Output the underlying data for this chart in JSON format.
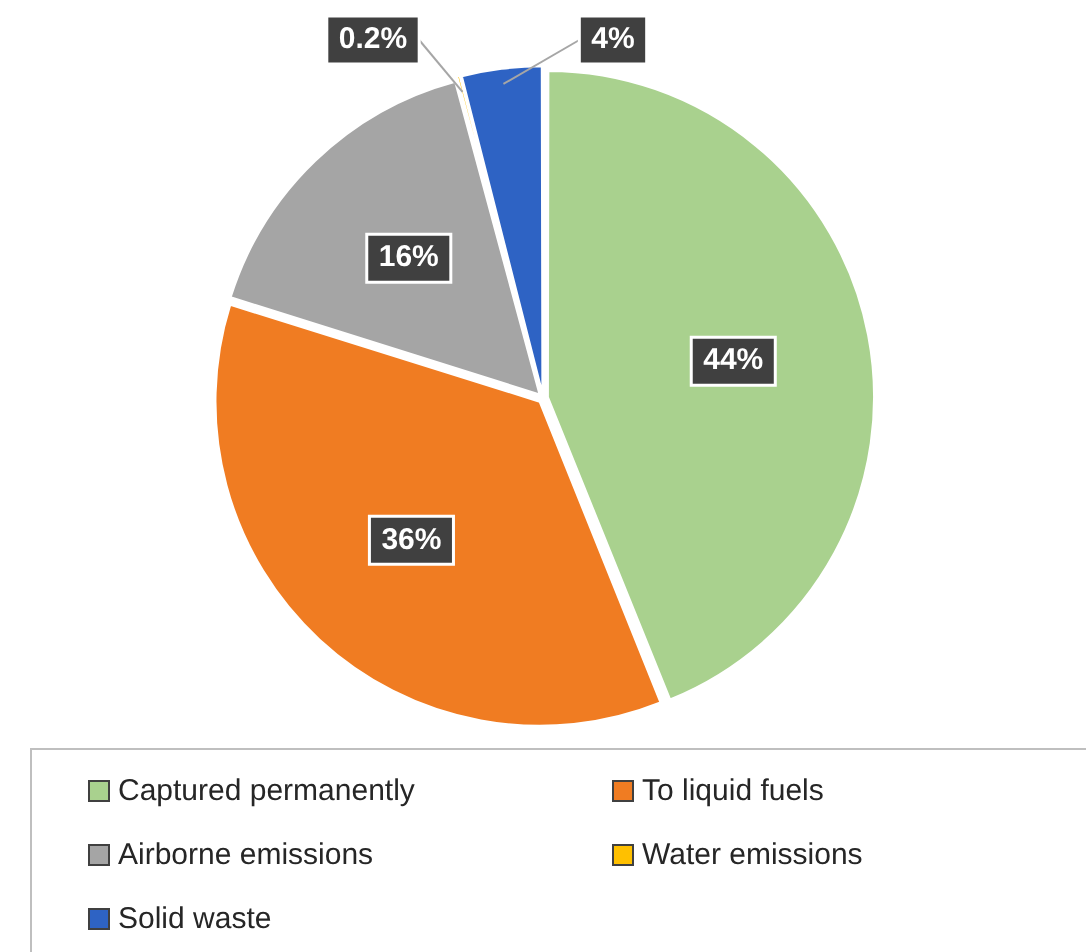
{
  "chart_data": {
    "type": "pie",
    "categories": [
      "Captured permanently",
      "To liquid fuels",
      "Airborne emissions",
      "Water emissions",
      "Solid waste"
    ],
    "values": [
      44,
      36,
      16,
      0.2,
      4
    ],
    "value_labels": [
      "44%",
      "36%",
      "16%",
      "0.2%",
      "4%"
    ],
    "colors": [
      "#a9d18e",
      "#f07c22",
      "#a5a5a5",
      "#ffc000",
      "#2e63c4"
    ],
    "legend": "bottom"
  }
}
